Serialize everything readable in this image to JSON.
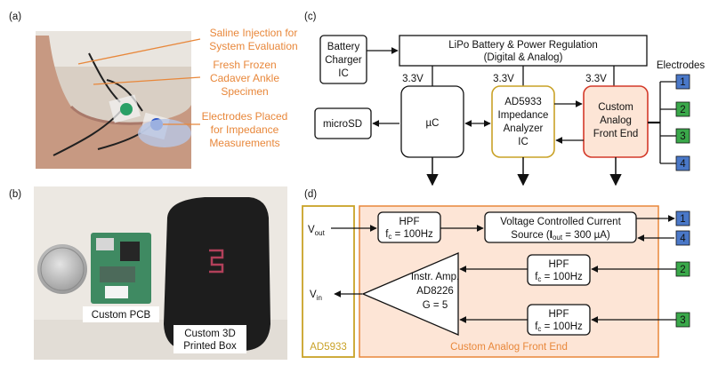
{
  "panel_a": {
    "label": "(a)",
    "annotations": [
      "Saline Injection for",
      "System Evaluation",
      "Fresh Frozen",
      "Cadaver Ankle",
      "Specimen",
      "Electrodes Placed",
      "for Impedance",
      "Measurements"
    ]
  },
  "panel_b": {
    "label": "(b)",
    "pcb_caption": "Custom PCB",
    "box_caption_1": "Custom 3D",
    "box_caption_2": "Printed Box"
  },
  "panel_c": {
    "label": "(c)",
    "battery_charger": [
      "Battery",
      "Charger",
      "IC"
    ],
    "lipo": [
      "LiPo Battery & Power Regulation",
      "(Digital & Analog)"
    ],
    "rail_labels": [
      "3.3V",
      "3.3V",
      "3.3V"
    ],
    "microsd": "microSD",
    "uc": "µC",
    "ad5933": [
      "AD5933",
      "Impedance",
      "Analyzer",
      "IC"
    ],
    "afe": [
      "Custom",
      "Analog",
      "Front End"
    ],
    "electrodes_title": "Electrodes",
    "electrodes": [
      "1",
      "2",
      "3",
      "4"
    ]
  },
  "panel_d": {
    "label": "(d)",
    "vout": "V",
    "vout_sub": "out",
    "vin": "V",
    "vin_sub": "in",
    "hpf_label": "HPF",
    "fc_main": "f",
    "fc_sub": "c",
    "fc_value": " = 100Hz",
    "vccs_line1": "Voltage Controlled Current",
    "vccs_line2_a": "Source (",
    "vccs_bold": "I",
    "vccs_sub": "out",
    "vccs_line2_b": " = 300 µA)",
    "amp": [
      "Instr. Amp.",
      "AD8226",
      "G = 5"
    ],
    "ad5933_label": "AD5933",
    "afe_label": "Custom Analog Front End",
    "electrodes": [
      "1",
      "4",
      "2",
      "3"
    ]
  },
  "colors": {
    "orange_text": "#e8873a",
    "ad5933_border": "#c9a227",
    "afe_border": "#d43a2a",
    "afe_fill": "#fde5d6",
    "electrode_blue": "#4a78c8",
    "electrode_green": "#3aa84a"
  }
}
